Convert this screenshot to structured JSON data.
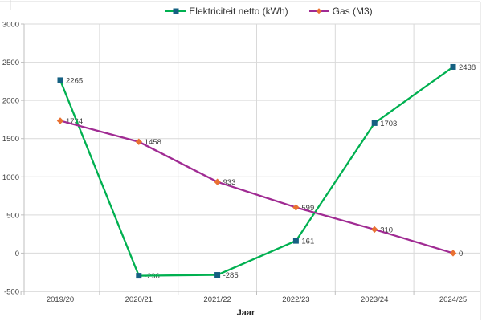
{
  "chart_border_color": "#D9D9D9",
  "chart_data": {
    "type": "line",
    "title": "",
    "xlabel": "Jaar",
    "ylabel": "",
    "categories": [
      "2019/20",
      "2020/21",
      "2021/22",
      "2022/23",
      "2023/24",
      "2024/25"
    ],
    "series": [
      {
        "name": "Elektriciteit netto (kWh)",
        "values": [
          2265,
          -296,
          -285,
          161,
          1703,
          2438
        ],
        "data_labels": [
          "2265",
          "-296",
          "-285",
          "161",
          "1703",
          "2438"
        ],
        "line_color": "#00B050",
        "marker": "square",
        "marker_color": "#156082"
      },
      {
        "name": "Gas (M3)",
        "values": [
          1734,
          1458,
          933,
          599,
          310,
          0
        ],
        "data_labels": [
          "1734",
          "1458",
          "933",
          "599",
          "310",
          "0"
        ],
        "line_color": "#A02B93",
        "marker": "diamond",
        "marker_color": "#E97132"
      }
    ],
    "ylim": [
      -500,
      3000
    ],
    "yticks": [
      3000,
      2500,
      2000,
      1500,
      1000,
      500,
      0,
      -500
    ],
    "grid": true,
    "legend_position": "top",
    "grid_color": "#D9D9D9",
    "axis_color": "#BFBFBF",
    "tick_label_color": "#404040",
    "data_label_color": "#3A3A3A"
  }
}
